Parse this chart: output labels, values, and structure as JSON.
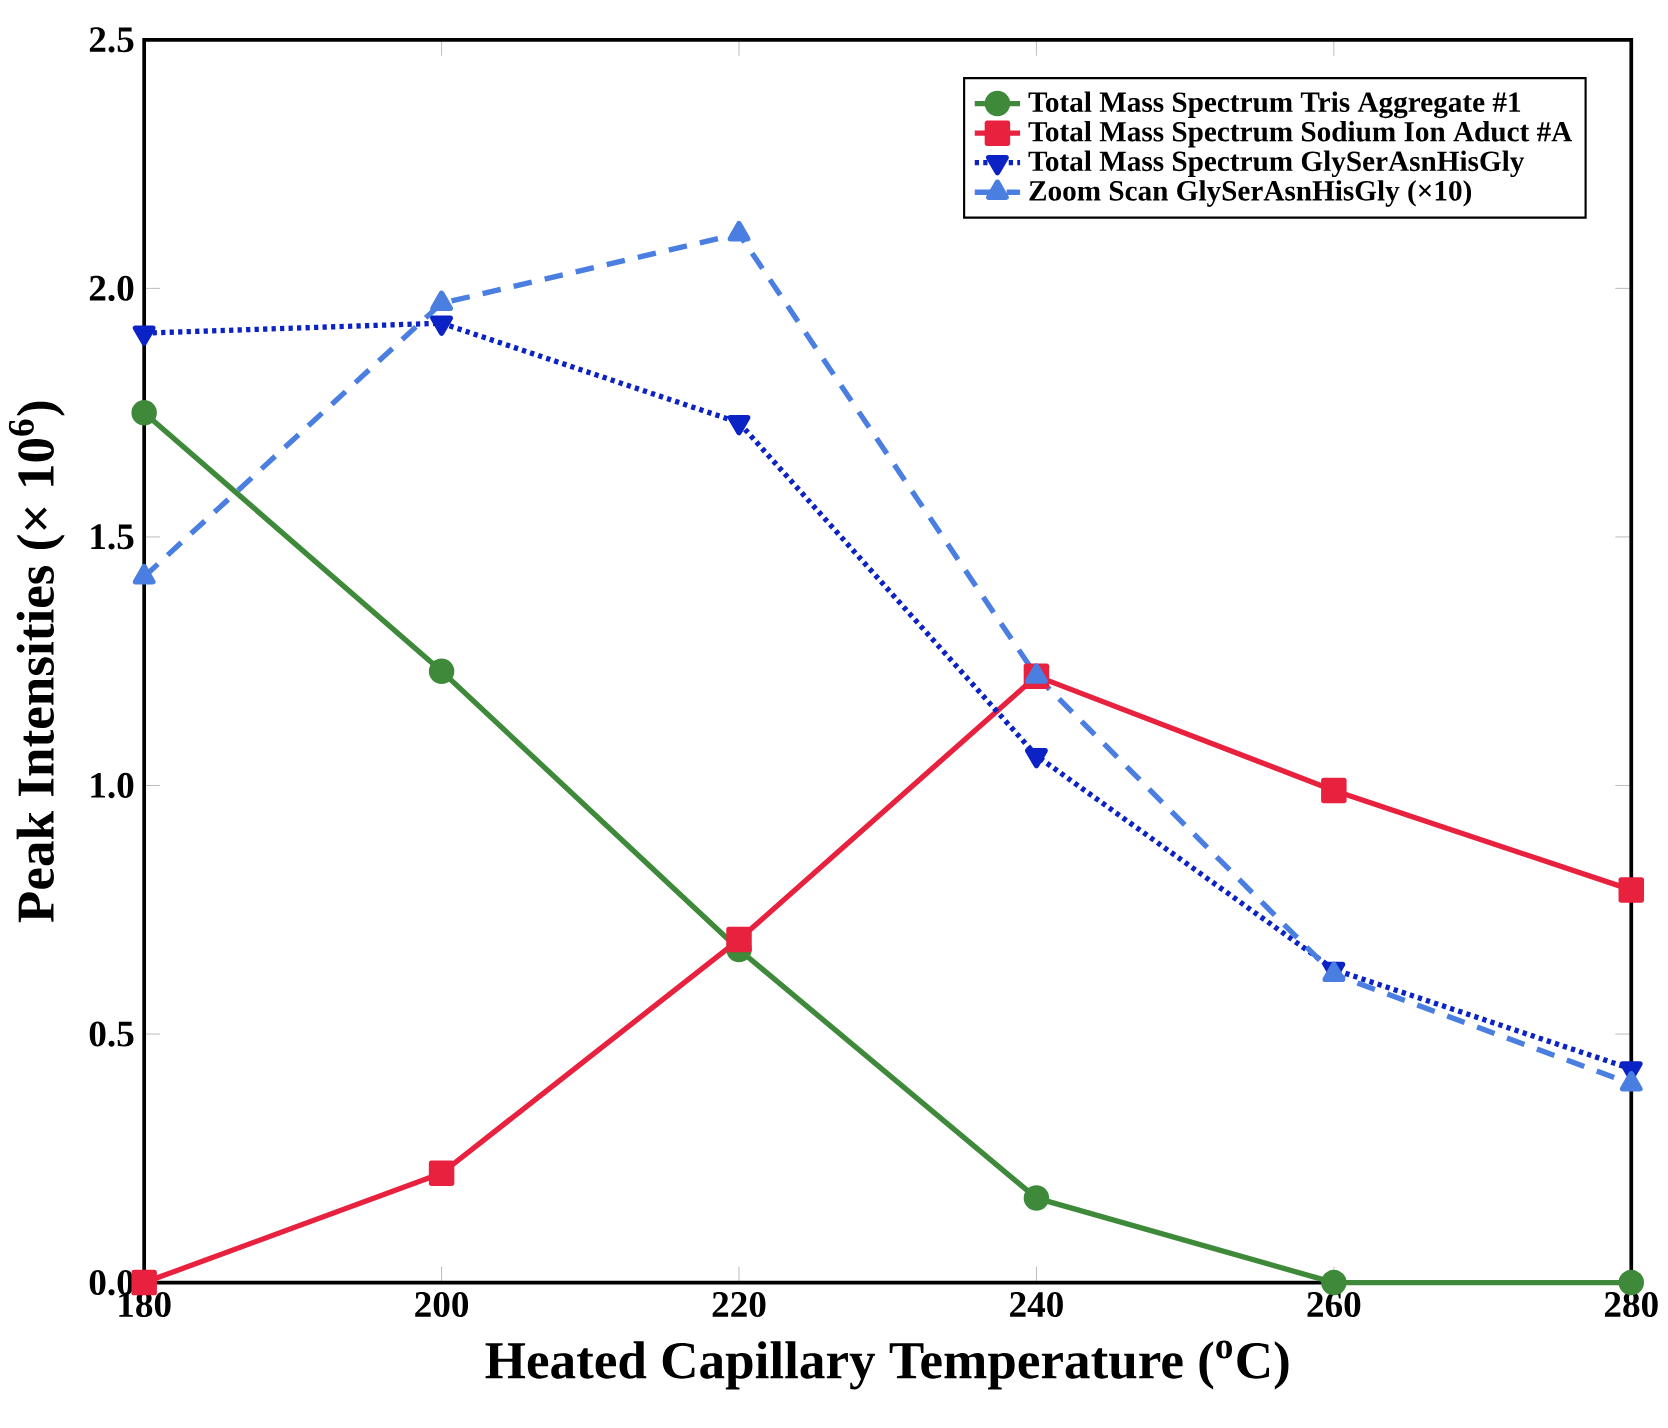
{
  "chart_data": {
    "type": "line",
    "xlabel": "Heated Capillary Temperature ($^{o}$C)",
    "ylabel": "Peak Intensities (× 10$^{6}$)",
    "x": [
      180,
      200,
      220,
      240,
      260,
      280
    ],
    "series": [
      {
        "name": "Total Mass Spectrum Tris Aggregate #1",
        "color": "#3f8a3a",
        "marker": "circle",
        "line_style": "solid",
        "values": [
          1.75,
          1.23,
          0.67,
          0.17,
          0.0,
          0.0
        ]
      },
      {
        "name": "Total Mass Spectrum Sodium Ion Aduct #A",
        "color": "#e8213f",
        "marker": "square",
        "line_style": "solid",
        "values": [
          0.0,
          0.22,
          0.69,
          1.22,
          0.99,
          0.79
        ]
      },
      {
        "name": "Total Mass Spectrum GlySerAsnHisGly",
        "color": "#0b22c4",
        "marker": "triangle_down",
        "line_style": "dotted",
        "values": [
          1.91,
          1.93,
          1.73,
          1.06,
          0.63,
          0.43
        ]
      },
      {
        "name": "Zoom Scan GlySerAsnHisGly (×10)",
        "color": "#4a7ee0",
        "marker": "triangle",
        "line_style": "dashed",
        "values": [
          1.42,
          1.97,
          2.11,
          1.22,
          0.62,
          0.4
        ]
      }
    ],
    "xlim": [
      180,
      280
    ],
    "ylim": [
      0,
      2.5
    ],
    "xticks": [
      180,
      200,
      220,
      240,
      260,
      280
    ],
    "yticks": [
      {
        "value": 0,
        "label": "0.0"
      },
      {
        "value": 0.5,
        "label": "0.5"
      },
      {
        "value": 1.0,
        "label": "1.0"
      },
      {
        "value": 1.5,
        "label": "1.5"
      },
      {
        "value": 2.0,
        "label": "2.0"
      },
      {
        "value": 2.5,
        "label": "2.5"
      }
    ],
    "grid": false,
    "legend": "top right"
  }
}
